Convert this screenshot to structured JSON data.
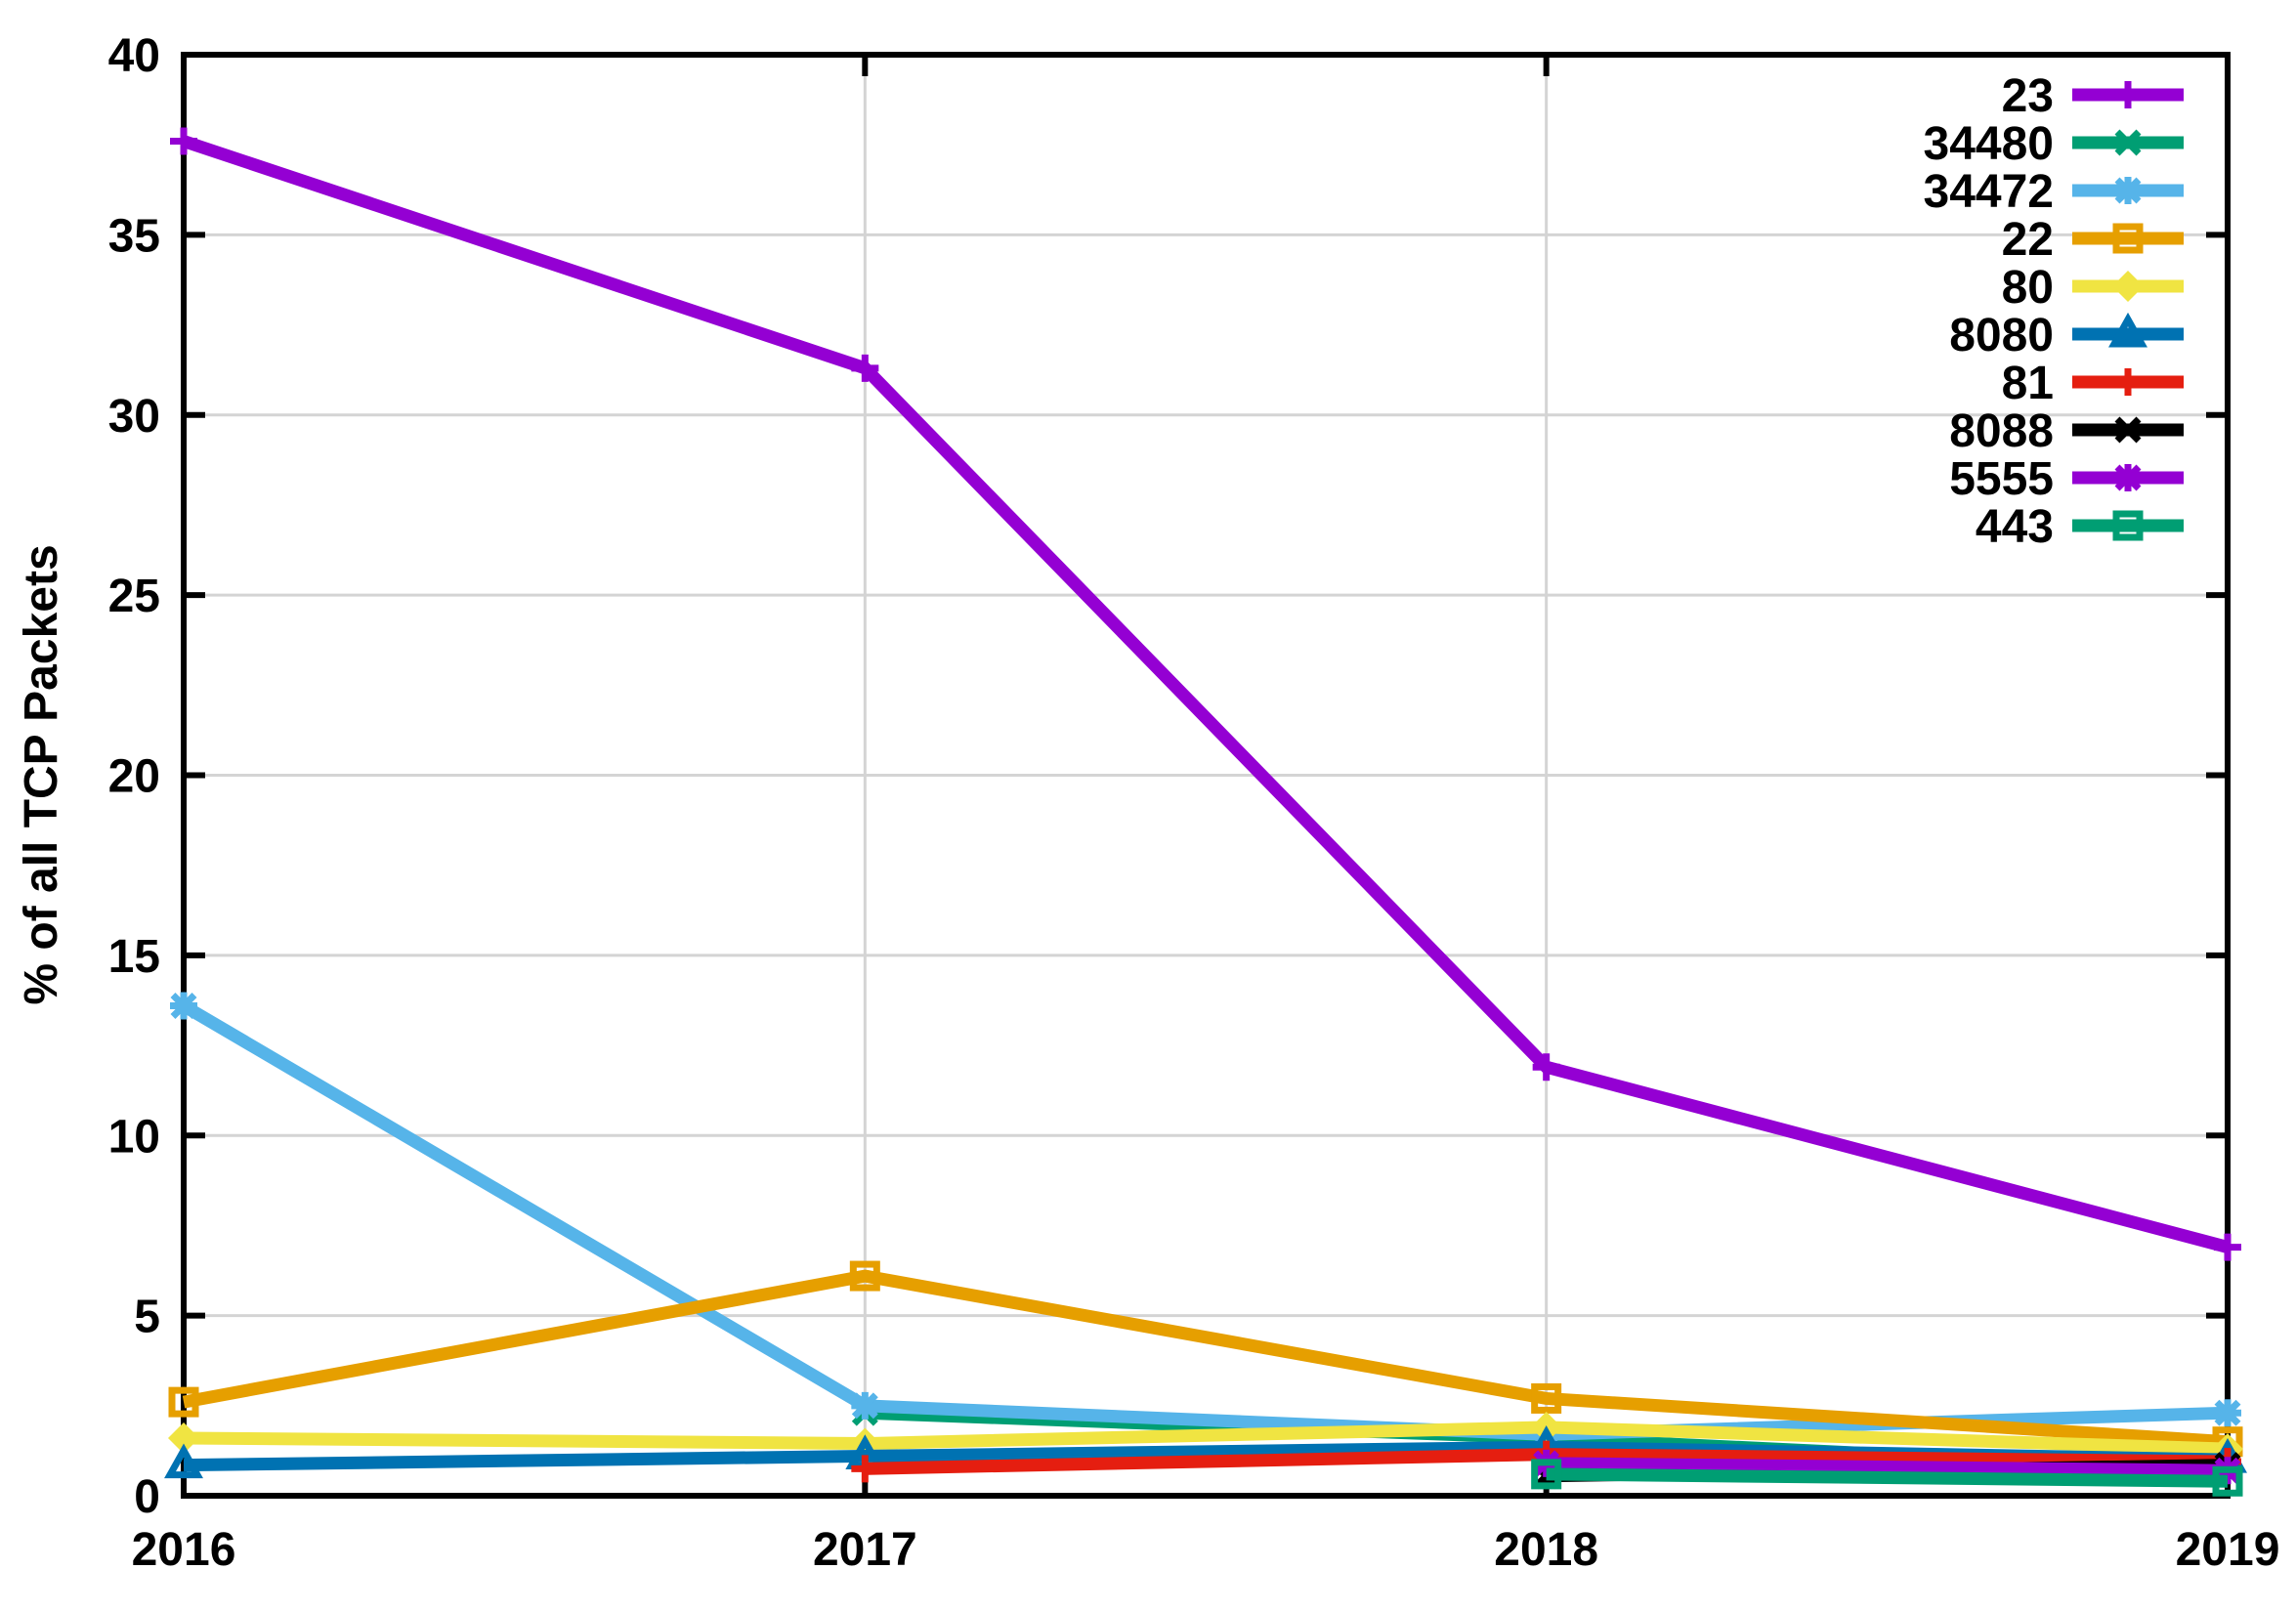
{
  "chart_data": {
    "type": "line",
    "title": "",
    "xlabel": "",
    "ylabel": "% of all TCP Packets",
    "xlim": [
      2016,
      2019
    ],
    "ylim": [
      0,
      40
    ],
    "x_ticks": [
      2016,
      2017,
      2018,
      2019
    ],
    "x_tick_labels": [
      "2016",
      "2017",
      "2018",
      "2019"
    ],
    "y_ticks": [
      0,
      5,
      10,
      15,
      20,
      25,
      30,
      35,
      40
    ],
    "y_tick_labels": [
      "0",
      "5",
      "10",
      "15",
      "20",
      "25",
      "30",
      "35",
      "40"
    ],
    "grid": true,
    "grid_color": "#d4d4d4",
    "axis_color": "#000000",
    "background": "#ffffff",
    "legend_position": "top-right-inside",
    "series": [
      {
        "name": "23",
        "color": "#9400d3",
        "marker": "plus",
        "x": [
          2016,
          2017,
          2018,
          2019
        ],
        "values": [
          37.6,
          31.3,
          11.9,
          6.9
        ]
      },
      {
        "name": "34480",
        "color": "#009e73",
        "marker": "x",
        "x": [
          2017,
          2018,
          2019
        ],
        "values": [
          2.3,
          1.6,
          0.7
        ]
      },
      {
        "name": "34472",
        "color": "#56b4e9",
        "marker": "asterisk",
        "x": [
          2016,
          2017,
          2018,
          2019
        ],
        "values": [
          13.6,
          2.5,
          1.7,
          2.3
        ]
      },
      {
        "name": "22",
        "color": "#e69f00",
        "marker": "square-open",
        "x": [
          2016,
          2017,
          2018,
          2019
        ],
        "values": [
          2.6,
          6.1,
          2.7,
          1.5
        ]
      },
      {
        "name": "80",
        "color": "#f0e442",
        "marker": "diamond-filled",
        "x": [
          2016,
          2017,
          2018,
          2019
        ],
        "values": [
          1.6,
          1.45,
          1.9,
          1.3
        ]
      },
      {
        "name": "8080",
        "color": "#0072b2",
        "marker": "triangle-open",
        "x": [
          2016,
          2017,
          2018,
          2019
        ],
        "values": [
          0.85,
          1.1,
          1.35,
          1.0
        ]
      },
      {
        "name": "81",
        "color": "#e51e10",
        "marker": "plus",
        "x": [
          2017,
          2018,
          2019
        ],
        "values": [
          0.75,
          1.15,
          0.95
        ]
      },
      {
        "name": "8088",
        "color": "#000000",
        "marker": "x",
        "x": [
          2018,
          2019
        ],
        "values": [
          0.55,
          0.85
        ]
      },
      {
        "name": "5555",
        "color": "#9400d3",
        "marker": "asterisk",
        "x": [
          2018,
          2019
        ],
        "values": [
          0.9,
          0.7
        ]
      },
      {
        "name": "443",
        "color": "#009e73",
        "marker": "square-open",
        "x": [
          2018,
          2019
        ],
        "values": [
          0.6,
          0.4
        ]
      }
    ]
  }
}
